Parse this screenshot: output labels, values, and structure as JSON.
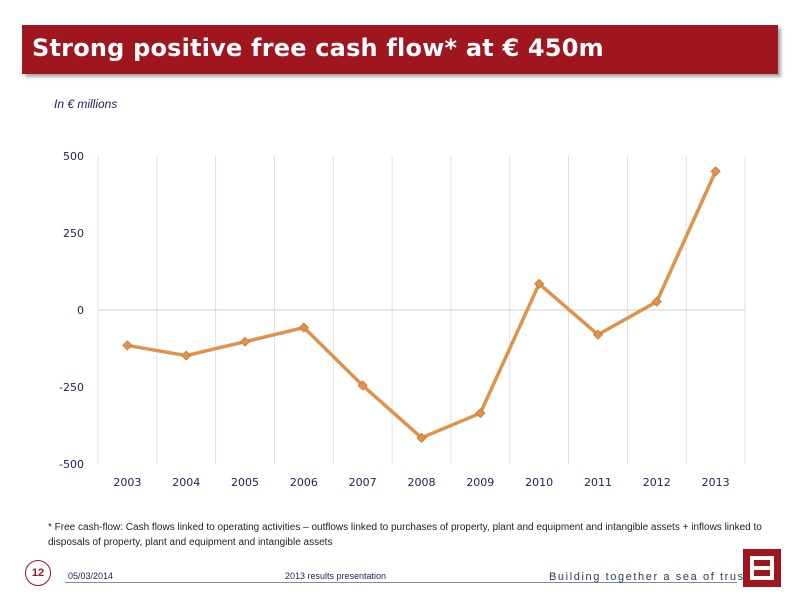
{
  "header": {
    "title": "Strong positive free cash flow* at € 450m"
  },
  "units_label": "In € millions",
  "chart_data": {
    "type": "line",
    "title": "",
    "xlabel": "",
    "ylabel": "",
    "categories": [
      "2003",
      "2004",
      "2005",
      "2006",
      "2007",
      "2008",
      "2009",
      "2010",
      "2011",
      "2012",
      "2013"
    ],
    "series": [
      {
        "values": [
          -115,
          -148,
          -103,
          -57,
          -245,
          -415,
          -335,
          85,
          -80,
          27,
          450
        ],
        "color": "#e0924a"
      }
    ],
    "ylim": [
      -500,
      500
    ],
    "yticks": [
      "500",
      "250",
      "0",
      "-250",
      "-500"
    ],
    "grid": true,
    "legend": "none"
  },
  "footnote": "* Free cash-flow: Cash flows linked to operating activities – outflows linked to purchases of property, plant and equipment and intangible assets + inflows linked to disposals of property, plant and equipment and intangible assets",
  "footer": {
    "page_number": "12",
    "date": "05/03/2014",
    "presentation": "2013 results presentation",
    "tagline": "Building together a sea of trust"
  },
  "colors": {
    "brand": "#a0161e",
    "series": "#e0924a"
  },
  "icons": {
    "logo": "b-logo-icon"
  }
}
